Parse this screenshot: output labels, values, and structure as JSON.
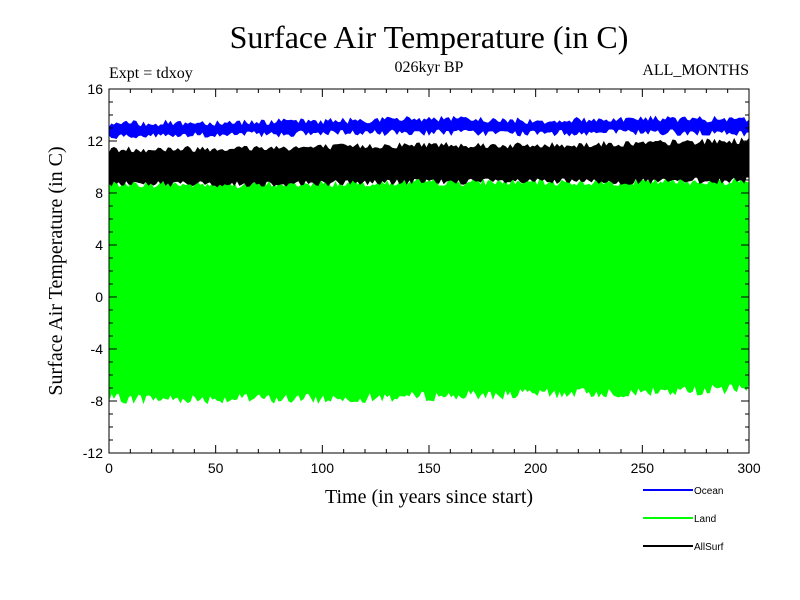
{
  "chart_data": {
    "type": "line",
    "title": "Surface Air Temperature (in C)",
    "subtitle_left": "Expt = tdxoy",
    "subtitle_center": "026kyr BP",
    "subtitle_right": "ALL_MONTHS",
    "xlabel": "Time (in years since start)",
    "ylabel": "Surface Air Temperature (in C)",
    "xlim": [
      0,
      300
    ],
    "ylim": [
      -12,
      16
    ],
    "xticks": [
      0,
      50,
      100,
      150,
      200,
      250,
      300
    ],
    "yticks": [
      -12,
      -8,
      -4,
      0,
      4,
      8,
      12,
      16
    ],
    "grid": false,
    "legend": "bottom-right",
    "series": [
      {
        "name": "Ocean",
        "color": "#0000ff",
        "envelope": {
          "x": [
            0,
            50,
            100,
            150,
            200,
            250,
            300
          ],
          "upper": [
            13.3,
            13.4,
            13.5,
            13.7,
            13.5,
            13.7,
            13.6
          ],
          "lower": [
            12.4,
            12.5,
            12.6,
            12.7,
            12.6,
            12.7,
            12.6
          ]
        }
      },
      {
        "name": "Land",
        "color": "#00ff00",
        "envelope": {
          "x": [
            0,
            50,
            100,
            150,
            200,
            250,
            300
          ],
          "upper": [
            8.7,
            8.6,
            8.7,
            8.8,
            8.8,
            8.8,
            8.9
          ],
          "lower": [
            -7.8,
            -7.8,
            -7.8,
            -7.6,
            -7.4,
            -7.3,
            -7.0
          ]
        }
      },
      {
        "name": "AllSurf",
        "color": "#000000",
        "envelope": {
          "x": [
            0,
            50,
            100,
            150,
            200,
            250,
            300
          ],
          "upper": [
            11.3,
            11.4,
            11.5,
            11.7,
            11.6,
            11.8,
            12.0
          ],
          "lower": [
            8.8,
            8.7,
            8.8,
            8.9,
            8.9,
            8.9,
            9.0
          ]
        }
      }
    ]
  }
}
